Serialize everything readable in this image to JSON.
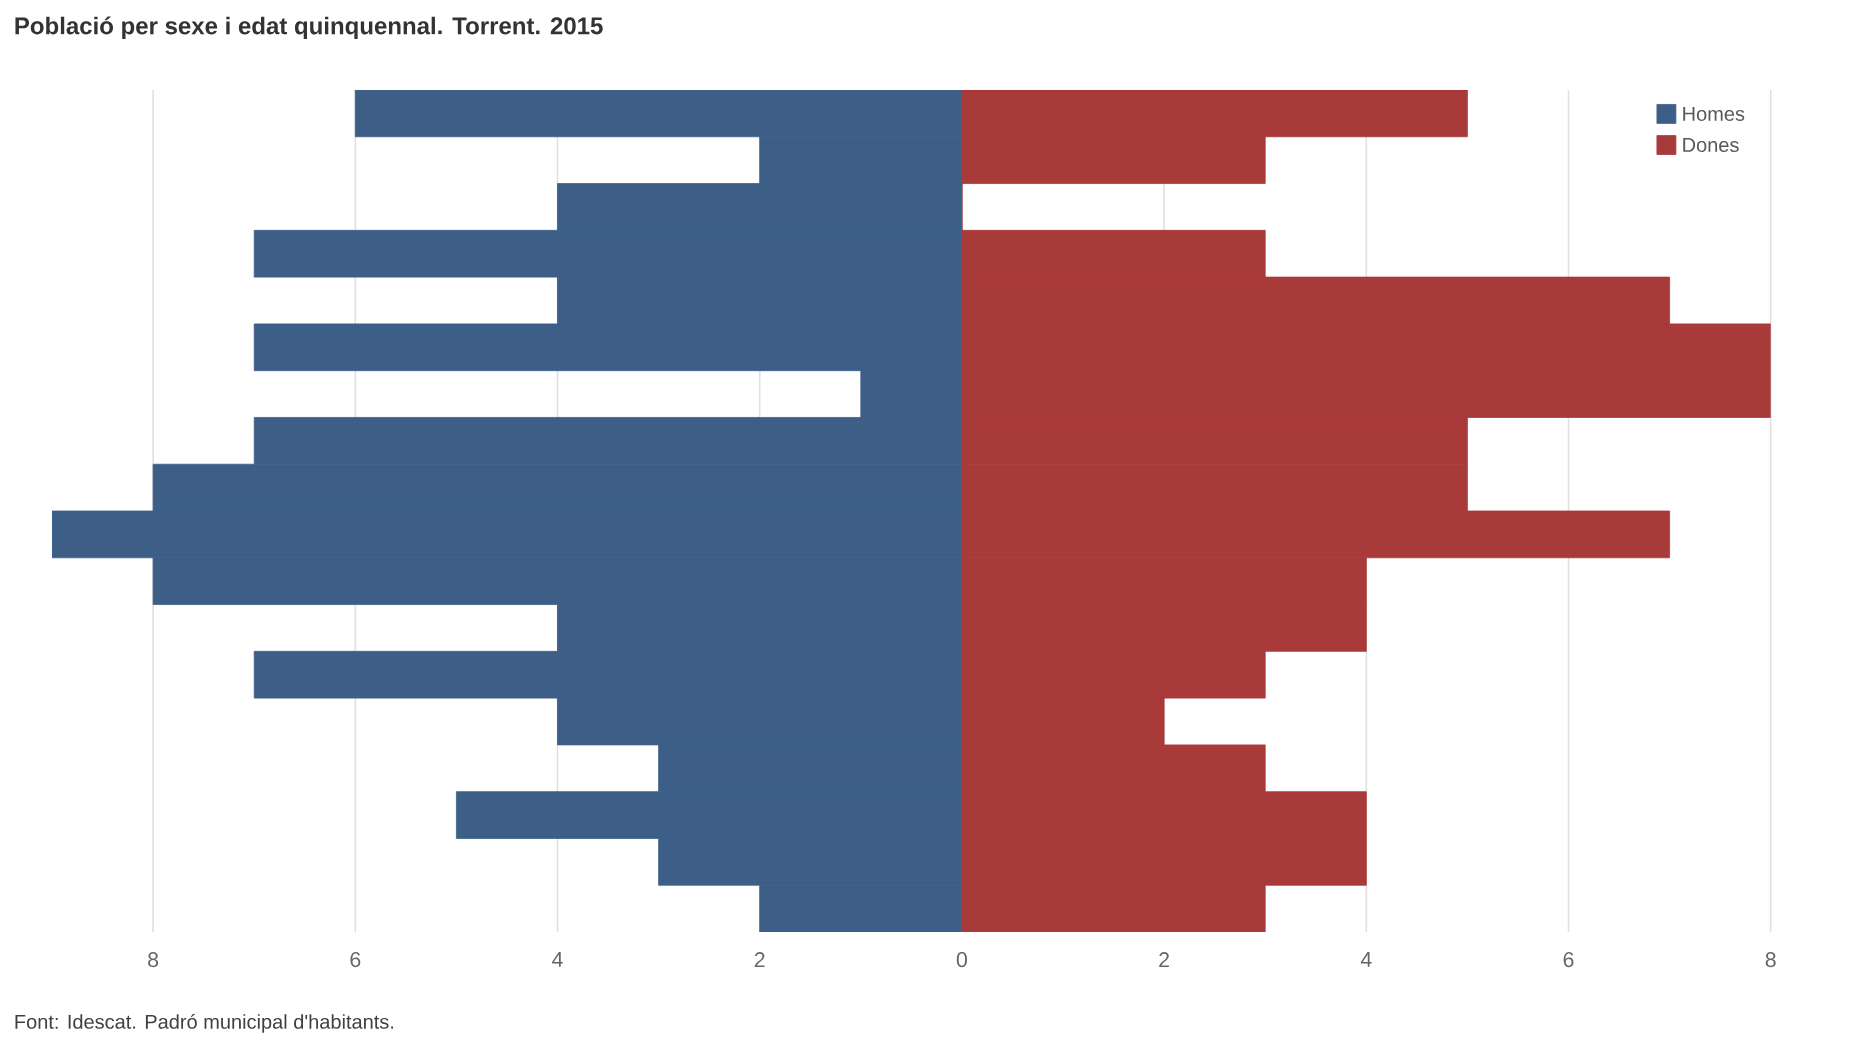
{
  "chart_data": {
    "type": "bar",
    "orientation": "horizontal",
    "title": "Població per sexe i edat quinquennal. Torrent. 2015",
    "categories": [
      null,
      null,
      null,
      null,
      null,
      null,
      null,
      null,
      null,
      null,
      null,
      null,
      null,
      null,
      null,
      null,
      null,
      null
    ],
    "series": [
      {
        "name": "Homes",
        "color": "#3d5f87",
        "values": [
          -6,
          -2,
          -4,
          -7,
          -4,
          -7,
          -1,
          -7,
          -8,
          -9,
          -8,
          -4,
          -7,
          -4,
          -3,
          -5,
          -3,
          -2
        ]
      },
      {
        "name": "Dones",
        "color": "#a83a3a",
        "values": [
          5,
          3,
          0,
          3,
          7,
          8,
          8,
          5,
          5,
          7,
          4,
          4,
          3,
          2,
          3,
          4,
          4,
          3
        ]
      }
    ],
    "xlim": [
      -9,
      8
    ],
    "xticks": [
      {
        "value": -8,
        "label": "8"
      },
      {
        "value": -6,
        "label": "6"
      },
      {
        "value": -4,
        "label": "4"
      },
      {
        "value": -2,
        "label": "2"
      },
      0,
      2,
      4,
      6,
      8
    ],
    "grid": "x",
    "stacked": true,
    "legend": "top right",
    "annotations": [
      "Font: Idescat. Padró municipal d'habitants."
    ]
  }
}
